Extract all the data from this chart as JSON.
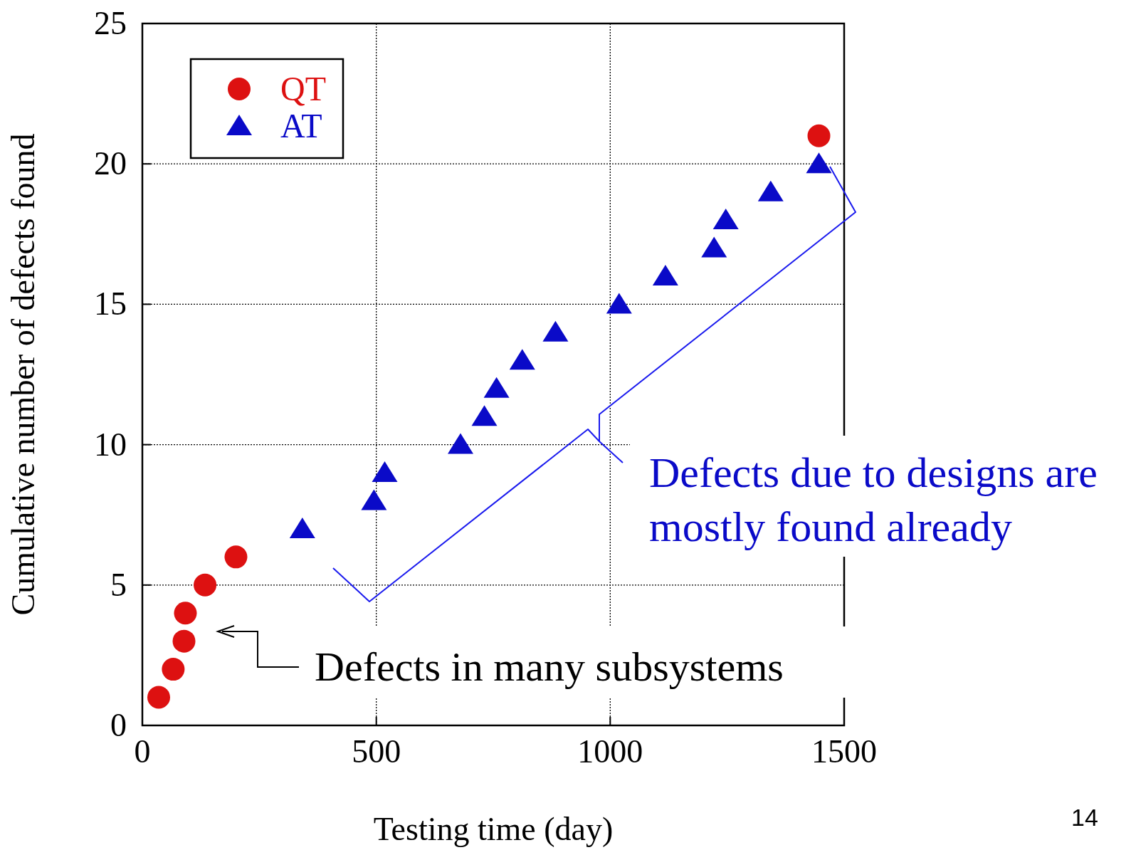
{
  "chart_data": {
    "type": "scatter",
    "xlabel": "Testing time (day)",
    "ylabel": "Cumulative number of defects found",
    "xlim": [
      0,
      1500
    ],
    "xticks": [
      0,
      500,
      1000,
      1500
    ],
    "ylim": [
      0,
      25
    ],
    "yticks": [
      0,
      5,
      10,
      15,
      20,
      25
    ],
    "grid": true,
    "legend": "top left",
    "series": [
      {
        "name": "QT",
        "color": "#dd1111",
        "marker": "circle",
        "x": [
          35,
          66,
          89,
          92,
          134,
          200,
          1446
        ],
        "values": [
          1,
          2,
          3,
          4,
          5,
          6,
          21
        ]
      },
      {
        "name": "AT",
        "color": "#0a0ac8",
        "marker": "triangle",
        "x": [
          342,
          495,
          518,
          680,
          731,
          757,
          812,
          883,
          1019,
          1118,
          1222,
          1247,
          1343,
          1446
        ],
        "values": [
          7,
          8,
          9,
          10,
          11,
          12,
          13,
          14,
          15,
          16,
          17,
          18,
          19,
          20
        ]
      }
    ],
    "annotations": [
      "Defects in many subsystems",
      "Defects due to designs are\nmostly found already",
      "14"
    ]
  }
}
